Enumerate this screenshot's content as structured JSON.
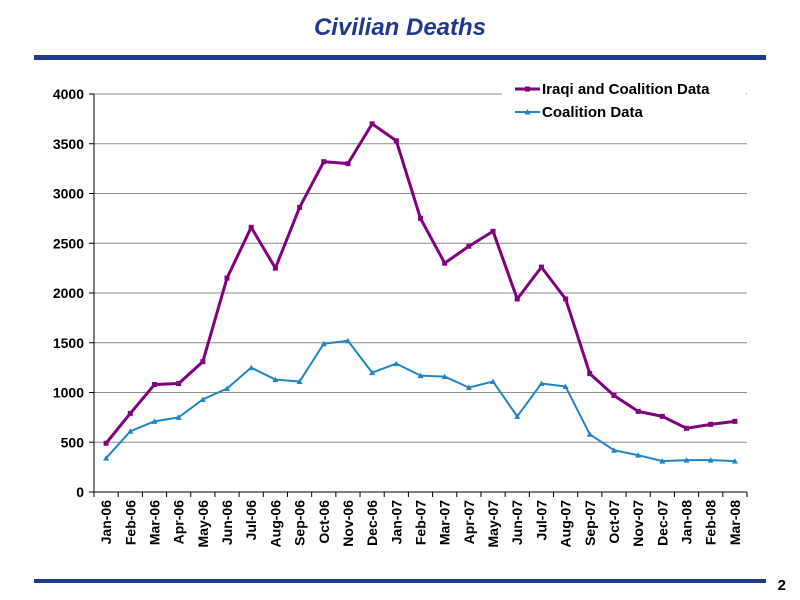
{
  "slide": {
    "title": "Civilian Deaths",
    "page_number": "2"
  },
  "chart_data": {
    "type": "line",
    "title": "",
    "xlabel": "",
    "ylabel": "",
    "ylim": [
      0,
      4000
    ],
    "yticks": [
      0,
      500,
      1000,
      1500,
      2000,
      2500,
      3000,
      3500,
      4000
    ],
    "grid": "horizontal",
    "legend": "top-right",
    "categories": [
      "Jan-06",
      "Feb-06",
      "Mar-06",
      "Apr-06",
      "May-06",
      "Jun-06",
      "Jul-06",
      "Aug-06",
      "Sep-06",
      "Oct-06",
      "Nov-06",
      "Dec-06",
      "Jan-07",
      "Feb-07",
      "Mar-07",
      "Apr-07",
      "May-07",
      "Jun-07",
      "Jul-07",
      "Aug-07",
      "Sep-07",
      "Oct-07",
      "Nov-07",
      "Dec-07",
      "Jan-08",
      "Feb-08",
      "Mar-08"
    ],
    "series": [
      {
        "name": "Iraqi and Coalition Data",
        "color": "#800080",
        "marker": "square",
        "values": [
          490,
          790,
          1080,
          1090,
          1310,
          2150,
          2660,
          2250,
          2860,
          3320,
          3300,
          3700,
          3530,
          2750,
          2300,
          2470,
          2620,
          1940,
          2260,
          1940,
          1190,
          970,
          810,
          760,
          640,
          680,
          710
        ]
      },
      {
        "name": "Coalition Data",
        "color": "#1f86c8",
        "marker": "triangle",
        "values": [
          340,
          610,
          710,
          750,
          930,
          1040,
          1250,
          1130,
          1110,
          1490,
          1520,
          1200,
          1290,
          1170,
          1160,
          1050,
          1110,
          760,
          1090,
          1060,
          580,
          420,
          370,
          310,
          320,
          320,
          310
        ]
      }
    ]
  }
}
